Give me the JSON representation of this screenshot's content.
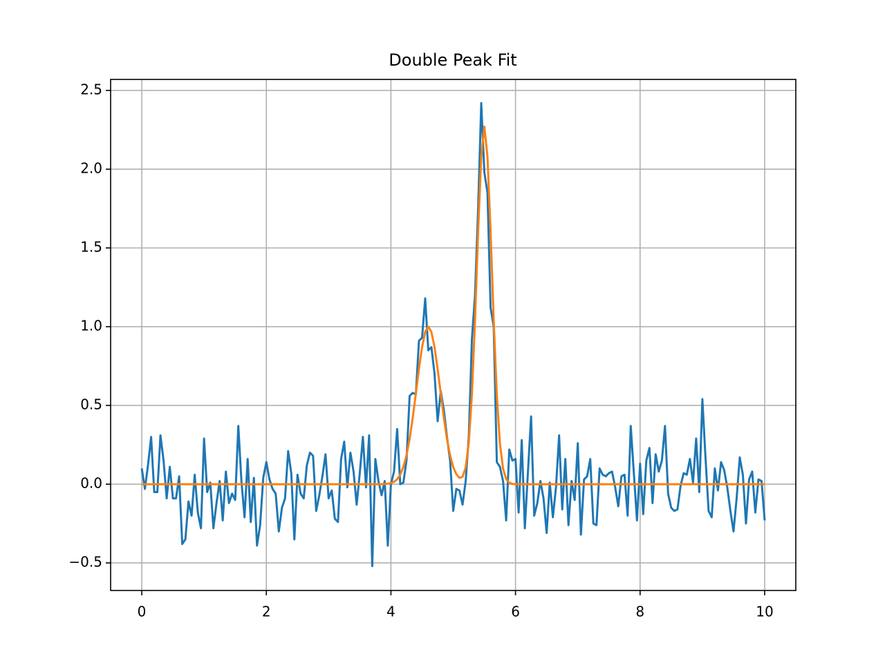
{
  "chart_data": {
    "type": "line",
    "title": "Double Peak Fit",
    "x": [
      0,
      0.05,
      0.1,
      0.15,
      0.2,
      0.25,
      0.3,
      0.35,
      0.4,
      0.45,
      0.5,
      0.55,
      0.6,
      0.65,
      0.7,
      0.75,
      0.8,
      0.85,
      0.9,
      0.95,
      1,
      1.05,
      1.1,
      1.15,
      1.2,
      1.25,
      1.3,
      1.35,
      1.4,
      1.45,
      1.5,
      1.55,
      1.6,
      1.65,
      1.7,
      1.75,
      1.8,
      1.85,
      1.9,
      1.95,
      2,
      2.05,
      2.1,
      2.15,
      2.2,
      2.25,
      2.3,
      2.35,
      2.4,
      2.45,
      2.5,
      2.55,
      2.6,
      2.65,
      2.7,
      2.75,
      2.8,
      2.85,
      2.9,
      2.95,
      3,
      3.05,
      3.1,
      3.15,
      3.2,
      3.25,
      3.3,
      3.35,
      3.4,
      3.45,
      3.5,
      3.55,
      3.6,
      3.65,
      3.7,
      3.75,
      3.8,
      3.85,
      3.9,
      3.95,
      4,
      4.05,
      4.1,
      4.15,
      4.2,
      4.25,
      4.3,
      4.35,
      4.4,
      4.45,
      4.5,
      4.55,
      4.6,
      4.65,
      4.7,
      4.75,
      4.8,
      4.85,
      4.9,
      4.95,
      5,
      5.05,
      5.1,
      5.15,
      5.2,
      5.25,
      5.3,
      5.35,
      5.4,
      5.45,
      5.5,
      5.55,
      5.6,
      5.65,
      5.7,
      5.75,
      5.8,
      5.85,
      5.9,
      5.95,
      6,
      6.05,
      6.1,
      6.15,
      6.2,
      6.25,
      6.3,
      6.35,
      6.4,
      6.45,
      6.5,
      6.55,
      6.6,
      6.65,
      6.7,
      6.75,
      6.8,
      6.85,
      6.9,
      6.95,
      7,
      7.05,
      7.1,
      7.15,
      7.2,
      7.25,
      7.3,
      7.35,
      7.4,
      7.45,
      7.5,
      7.55,
      7.6,
      7.65,
      7.7,
      7.75,
      7.8,
      7.85,
      7.9,
      7.95,
      8,
      8.05,
      8.1,
      8.15,
      8.2,
      8.25,
      8.3,
      8.35,
      8.4,
      8.45,
      8.5,
      8.55,
      8.6,
      8.65,
      8.7,
      8.75,
      8.8,
      8.85,
      8.9,
      8.95,
      9,
      9.05,
      9.1,
      9.15,
      9.2,
      9.25,
      9.3,
      9.35,
      9.4,
      9.45,
      9.5,
      9.55,
      9.6,
      9.65,
      9.7,
      9.75,
      9.8,
      9.85,
      9.9,
      9.95,
      10
    ],
    "series": [
      {
        "color": "#1f77b4",
        "values": [
          0.1,
          -0.03,
          0.12,
          0.3,
          -0.05,
          -0.05,
          0.31,
          0.15,
          -0.09,
          0.11,
          -0.09,
          -0.09,
          0.05,
          -0.38,
          -0.35,
          -0.11,
          -0.2,
          0.06,
          -0.18,
          -0.28,
          0.29,
          -0.05,
          0.01,
          -0.28,
          -0.12,
          0.02,
          -0.23,
          0.08,
          -0.12,
          -0.06,
          -0.1,
          0.37,
          0.02,
          -0.21,
          0.16,
          -0.24,
          0.04,
          -0.39,
          -0.26,
          0.04,
          0.14,
          0.03,
          -0.03,
          -0.06,
          -0.3,
          -0.15,
          -0.09,
          0.21,
          0.07,
          -0.35,
          0.06,
          -0.06,
          -0.09,
          0.12,
          0.2,
          0.18,
          -0.17,
          -0.07,
          0.05,
          0.19,
          -0.09,
          -0.04,
          -0.22,
          -0.24,
          0.16,
          0.27,
          -0.02,
          0.2,
          0.08,
          -0.13,
          0.07,
          0.3,
          -0.02,
          0.31,
          -0.52,
          0.16,
          0.02,
          -0.07,
          0.02,
          -0.39,
          0.0,
          0.08,
          0.35,
          0.0,
          0.01,
          0.15,
          0.56,
          0.58,
          0.57,
          0.91,
          0.93,
          1.18,
          0.85,
          0.87,
          0.7,
          0.4,
          0.59,
          0.47,
          0.3,
          0.15,
          -0.17,
          -0.03,
          -0.04,
          -0.13,
          0.02,
          0.3,
          0.92,
          1.2,
          1.75,
          2.42,
          1.98,
          1.85,
          1.12,
          1.0,
          0.14,
          0.11,
          0.02,
          -0.23,
          0.22,
          0.15,
          0.16,
          -0.18,
          0.28,
          -0.28,
          0.08,
          0.43,
          -0.2,
          -0.12,
          0.02,
          -0.09,
          -0.31,
          0.01,
          -0.21,
          -0.02,
          0.31,
          -0.16,
          0.16,
          -0.26,
          0.02,
          -0.1,
          0.26,
          -0.32,
          0.03,
          0.05,
          0.16,
          -0.25,
          -0.26,
          0.1,
          0.06,
          0.05,
          0.07,
          0.08,
          -0.02,
          -0.14,
          0.05,
          0.06,
          -0.2,
          0.37,
          0.07,
          -0.23,
          0.13,
          -0.19,
          0.15,
          0.23,
          -0.12,
          0.19,
          0.08,
          0.15,
          0.37,
          -0.06,
          -0.15,
          -0.17,
          -0.16,
          -0.01,
          0.07,
          0.06,
          0.16,
          0.01,
          0.29,
          -0.05,
          0.54,
          0.17,
          -0.17,
          -0.21,
          0.1,
          -0.04,
          0.14,
          0.09,
          -0.02,
          -0.17,
          -0.3,
          -0.09,
          0.17,
          0.06,
          -0.25,
          0.03,
          0.08,
          -0.18,
          0.03,
          0.02,
          -0.23
        ]
      },
      {
        "color": "#ff7f0e",
        "values": [
          0,
          0,
          0,
          0,
          0,
          0,
          0,
          0,
          0,
          0,
          0,
          0,
          0,
          0,
          0,
          0,
          0,
          0,
          0,
          0,
          0,
          0,
          0,
          0,
          0,
          0,
          0,
          0,
          0,
          0,
          0,
          0,
          0,
          0,
          0,
          0,
          0,
          0,
          0,
          0,
          0,
          0,
          0,
          0,
          0,
          0,
          0,
          0,
          0,
          0,
          0,
          0,
          0,
          0,
          0,
          0,
          0,
          0,
          0,
          0,
          0,
          0,
          0,
          0,
          0,
          0,
          0,
          0,
          0,
          0,
          0,
          0,
          0,
          0,
          0,
          0,
          0,
          0,
          0.001,
          0.003,
          0.007,
          0.015,
          0.031,
          0.061,
          0.109,
          0.183,
          0.287,
          0.421,
          0.575,
          0.732,
          0.871,
          0.966,
          1.0,
          0.966,
          0.871,
          0.732,
          0.575,
          0.421,
          0.287,
          0.183,
          0.109,
          0.063,
          0.04,
          0.047,
          0.107,
          0.262,
          0.567,
          1.04,
          1.604,
          2.081,
          2.27,
          2.081,
          1.604,
          1.04,
          0.566,
          0.259,
          0.1,
          0.032,
          0.009,
          0.002,
          0,
          0,
          0,
          0,
          0,
          0,
          0,
          0,
          0,
          0,
          0,
          0,
          0,
          0,
          0,
          0,
          0,
          0,
          0,
          0,
          0,
          0,
          0,
          0,
          0,
          0,
          0,
          0,
          0,
          0,
          0,
          0,
          0,
          0,
          0,
          0,
          0,
          0,
          0,
          0,
          0,
          0,
          0,
          0,
          0,
          0,
          0,
          0,
          0,
          0,
          0,
          0,
          0,
          0,
          0,
          0,
          0,
          0,
          0,
          0,
          0,
          0,
          0,
          0,
          0,
          0,
          0,
          0,
          0,
          0,
          0,
          0,
          0,
          0,
          0,
          0,
          0,
          0,
          0,
          0,
          0
        ]
      }
    ],
    "xlim": [
      -0.5,
      10.5
    ],
    "xticks": [
      0,
      2,
      4,
      6,
      8,
      10
    ],
    "ylim": [
      -0.675,
      2.57
    ],
    "yticks": [
      {
        "value": -0.5,
        "label": "−0.5"
      },
      {
        "value": 0,
        "label": "0.0"
      },
      0.5,
      {
        "value": 1,
        "label": "1.0"
      },
      1.5,
      {
        "value": 2,
        "label": "2.0"
      },
      2.5
    ],
    "grid": true
  }
}
